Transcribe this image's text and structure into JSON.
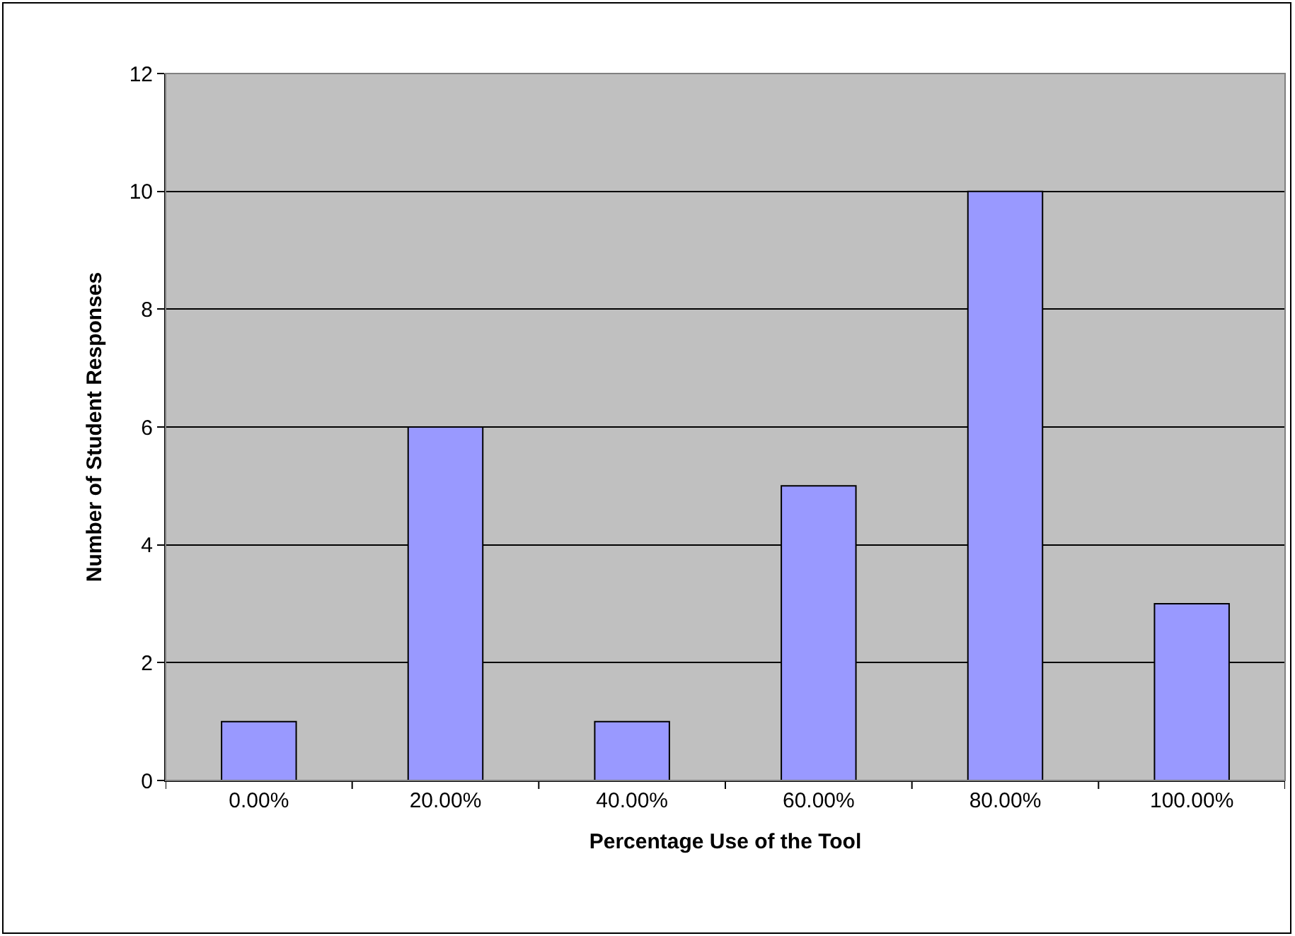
{
  "chart_data": {
    "type": "bar",
    "xlabel": "Percentage Use of the Tool",
    "ylabel": "Number of Student Responses",
    "categories": [
      "0.00%",
      "20.00%",
      "40.00%",
      "60.00%",
      "80.00%",
      "100.00%"
    ],
    "values": [
      1,
      6,
      1,
      5,
      10,
      3
    ],
    "color": "#9999ff",
    "ylim": [
      0,
      12
    ],
    "yticks": [
      0,
      2,
      4,
      6,
      8,
      10,
      12
    ],
    "grid": "y"
  }
}
